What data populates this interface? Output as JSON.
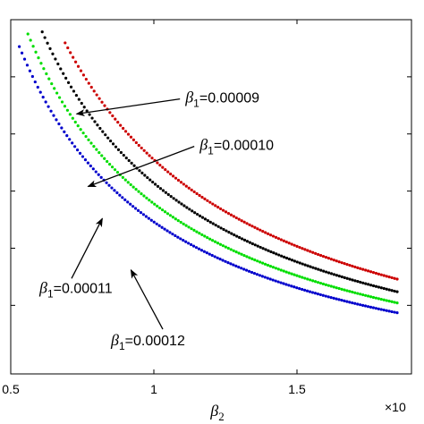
{
  "chart_data": {
    "type": "scatter",
    "xlabel": "β",
    "xlabel_sub": "2",
    "x_multiplier": "×10",
    "xlim": [
      0.5,
      1.9
    ],
    "ylim": [
      0.8,
      7.0
    ],
    "x_ticks": [
      0.5,
      1,
      1.5
    ],
    "x_tick_labels": [
      "0.5",
      "1",
      "1.5"
    ],
    "y_ticks": [
      2,
      3,
      4,
      5,
      6
    ],
    "grid": false,
    "legend": "none",
    "series": [
      {
        "name": "β1=0.00009",
        "color": "#cc0000",
        "k": 4.55,
        "x_start": 0.69,
        "x_end": 1.85
      },
      {
        "name": "β1=0.00010",
        "color": "#000000",
        "k": 4.14,
        "x_start": 0.61,
        "x_end": 1.85
      },
      {
        "name": "β1=0.00011",
        "color": "#00dd00",
        "k": 3.78,
        "x_start": 0.56,
        "x_end": 1.85
      },
      {
        "name": "β1=0.00012",
        "color": "#0000cc",
        "k": 3.46,
        "x_start": 0.53,
        "x_end": 1.85
      }
    ],
    "annotations": [
      {
        "sym": "β",
        "sub": "1",
        "text": "=0.00009",
        "tx": 1.11,
        "ty": 5.55,
        "ax": 0.73,
        "ay": 5.35
      },
      {
        "sym": "β",
        "sub": "1",
        "text": "=0.00010",
        "tx": 1.16,
        "ty": 4.72,
        "ax": 0.77,
        "ay": 4.08
      },
      {
        "sym": "β",
        "sub": "1",
        "text": "=0.00011",
        "tx": 0.6,
        "ty": 2.22,
        "ax": 0.82,
        "ay": 3.52
      },
      {
        "sym": "β",
        "sub": "1",
        "text": "=0.00012",
        "tx": 0.85,
        "ty": 1.3,
        "ax": 0.92,
        "ay": 2.62
      }
    ]
  }
}
